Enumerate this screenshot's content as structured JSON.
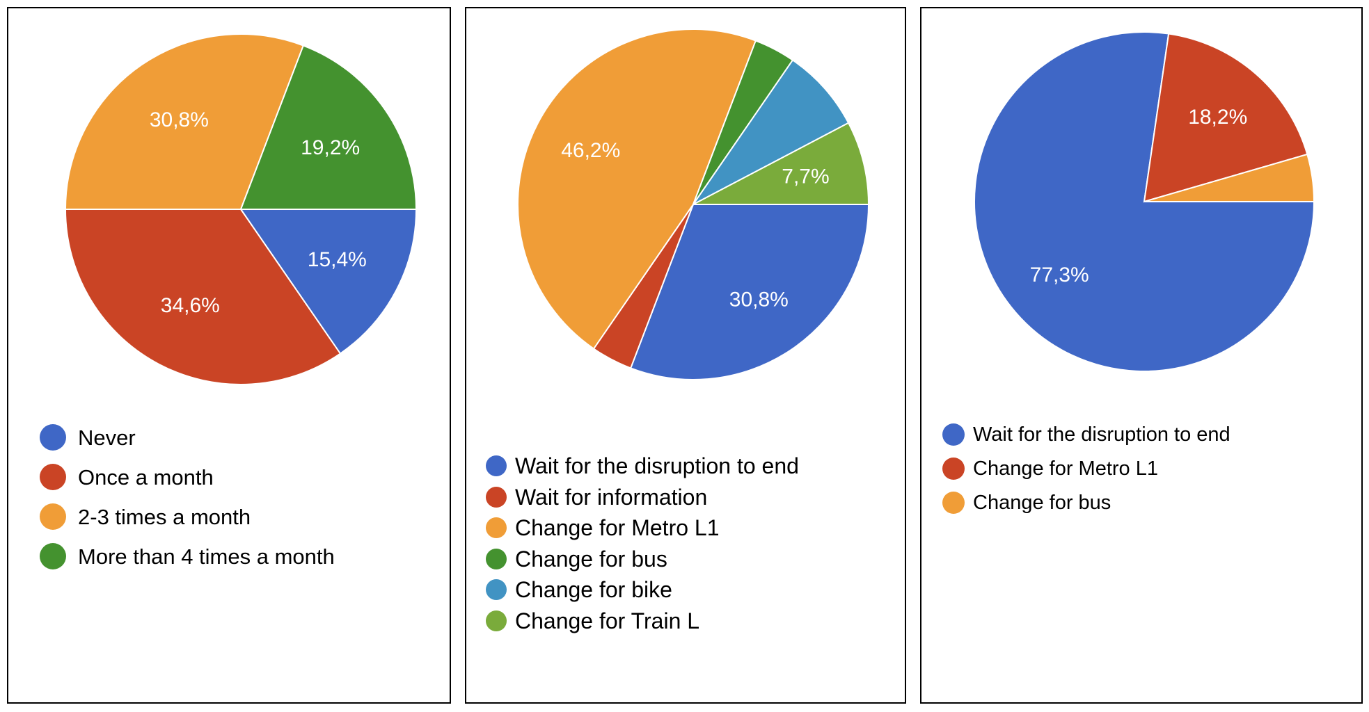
{
  "chart_data": [
    {
      "type": "pie",
      "categories": [
        "Never",
        "Once a month",
        "2-3 times a month",
        "More than 4 times a month"
      ],
      "values": [
        15.4,
        34.6,
        30.8,
        19.2
      ],
      "colors": [
        "#3f67c6",
        "#ca4425",
        "#f09d37",
        "#44922f"
      ],
      "data_labels": [
        "15,4%",
        "34,6%",
        "30,8%",
        "19,2%"
      ],
      "legend_position": "bottom"
    },
    {
      "type": "pie",
      "categories": [
        "Wait for the disruption to end",
        "Wait for information",
        "Change for Metro L1",
        "Change for bus",
        "Change for bike",
        "Change for Train L"
      ],
      "values": [
        30.8,
        3.8,
        46.2,
        3.8,
        7.7,
        7.7
      ],
      "colors": [
        "#3f67c6",
        "#ca4425",
        "#f09d37",
        "#44922f",
        "#4193c3",
        "#7aab3b"
      ],
      "data_labels": [
        "30,8%",
        "",
        "46,2%",
        "",
        "",
        "7,7%"
      ],
      "legend_position": "bottom"
    },
    {
      "type": "pie",
      "categories": [
        "Wait for the disruption to end",
        "Change for Metro L1",
        "Change for bus"
      ],
      "values": [
        77.3,
        18.2,
        4.5
      ],
      "colors": [
        "#3f67c6",
        "#ca4425",
        "#f09d37"
      ],
      "data_labels": [
        "77,3%",
        "18,2%",
        ""
      ],
      "legend_position": "bottom"
    }
  ]
}
